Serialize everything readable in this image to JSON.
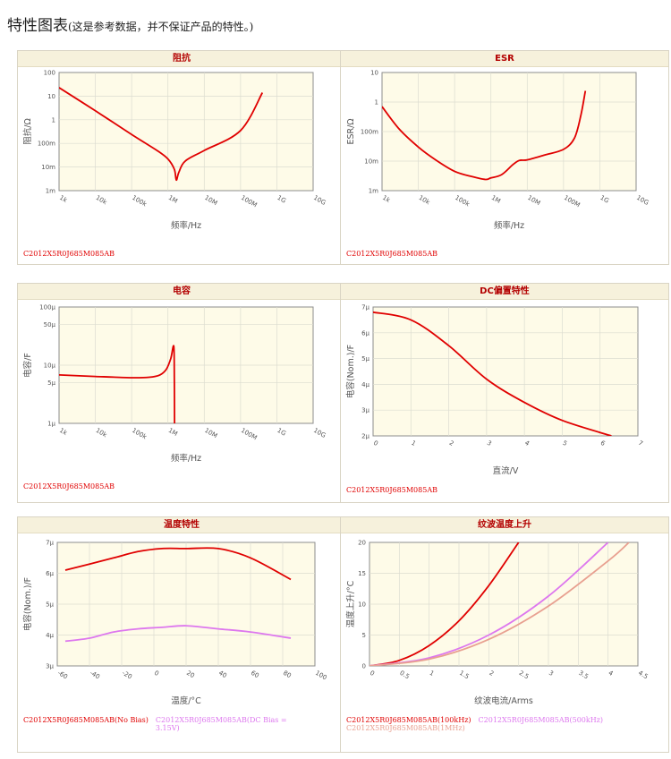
{
  "page": {
    "title": "特性图表",
    "subtitle": "(这是参考数据，并不保证产品的特性。)"
  },
  "chart_data": [
    {
      "id": "impedance",
      "type": "line",
      "title": "阻抗",
      "xlabel": "频率/Hz",
      "ylabel": "阻抗/Ω",
      "xscale": "log",
      "yscale": "log",
      "xlim": [
        1000,
        10000000000
      ],
      "ylim": [
        0.001,
        100
      ],
      "xticks": [
        1000,
        10000,
        100000,
        1000000,
        10000000,
        100000000,
        1000000000,
        10000000000
      ],
      "xtick_labels": [
        "1k",
        "10k",
        "100k",
        "1M",
        "10M",
        "100M",
        "1G",
        "10G"
      ],
      "yticks": [
        0.001,
        0.01,
        0.1,
        1,
        10,
        100
      ],
      "ytick_labels": [
        "1m",
        "10m",
        "100m",
        "1",
        "10",
        "100"
      ],
      "series": [
        {
          "color": "#e00000",
          "x": [
            1000,
            10000,
            100000,
            500000,
            1000000,
            1500000,
            1700000,
            2000000,
            3000000,
            10000000,
            100000000,
            400000000
          ],
          "y": [
            23,
            2.4,
            0.24,
            0.05,
            0.022,
            0.008,
            0.0028,
            0.006,
            0.018,
            0.05,
            0.35,
            14
          ]
        }
      ],
      "legend": [
        {
          "label": "C2012X5R0J685M085AB",
          "color": "#e00000"
        }
      ]
    },
    {
      "id": "esr",
      "type": "line",
      "title": "ESR",
      "xlabel": "频率/Hz",
      "ylabel": "ESR/Ω",
      "xscale": "log",
      "yscale": "log",
      "xlim": [
        1000,
        10000000000
      ],
      "ylim": [
        0.001,
        10
      ],
      "xticks": [
        1000,
        10000,
        100000,
        1000000,
        10000000,
        100000000,
        1000000000,
        10000000000
      ],
      "xtick_labels": [
        "1k",
        "10k",
        "100k",
        "1M",
        "10M",
        "100M",
        "1G",
        "10G"
      ],
      "yticks": [
        0.001,
        0.01,
        0.1,
        1,
        10
      ],
      "ytick_labels": [
        "1m",
        "10m",
        "100m",
        "1",
        "10"
      ],
      "series": [
        {
          "color": "#e00000",
          "x": [
            1000,
            3000,
            10000,
            30000,
            100000,
            300000,
            700000,
            1000000,
            2000000,
            4000000,
            6000000,
            10000000,
            30000000,
            100000000,
            200000000,
            300000000,
            400000000
          ],
          "y": [
            0.7,
            0.12,
            0.03,
            0.011,
            0.0045,
            0.003,
            0.0024,
            0.0027,
            0.0035,
            0.0075,
            0.0105,
            0.011,
            0.016,
            0.025,
            0.06,
            0.35,
            2.4
          ]
        }
      ],
      "legend": [
        {
          "label": "C2012X5R0J685M085AB",
          "color": "#e00000"
        }
      ]
    },
    {
      "id": "capacitance",
      "type": "line",
      "title": "电容",
      "xlabel": "频率/Hz",
      "ylabel": "电容/F",
      "xscale": "log",
      "yscale": "log",
      "xlim": [
        1000,
        10000000000
      ],
      "ylim": [
        1e-06,
        0.0001
      ],
      "xticks": [
        1000,
        10000,
        100000,
        1000000,
        10000000,
        100000000,
        1000000000,
        10000000000
      ],
      "xtick_labels": [
        "1k",
        "10k",
        "100k",
        "1M",
        "10M",
        "100M",
        "1G",
        "10G"
      ],
      "yticks": [
        1e-06,
        5e-06,
        1e-05,
        5e-05,
        0.0001
      ],
      "ytick_labels": [
        "1μ",
        "5μ",
        "10μ",
        "50μ",
        "100μ"
      ],
      "series": [
        {
          "color": "#e00000",
          "x": [
            1000,
            10000,
            100000,
            300000,
            600000,
            900000,
            1200000,
            1450000,
            1500000,
            1520000
          ],
          "y": [
            6.8e-06,
            6.4e-06,
            6.1e-06,
            6.2e-06,
            6.8e-06,
            8.5e-06,
            1.3e-05,
            2.1e-05,
            5e-06,
            1e-06
          ]
        }
      ],
      "legend": [
        {
          "label": "C2012X5R0J685M085AB",
          "color": "#e00000"
        }
      ]
    },
    {
      "id": "dc_bias",
      "type": "line",
      "title": "DC偏置特性",
      "xlabel": "直流/V",
      "ylabel": "电容(Nom.)/F",
      "xlim": [
        0,
        7
      ],
      "ylim": [
        2e-06,
        7e-06
      ],
      "xticks": [
        0,
        1,
        2,
        3,
        4,
        5,
        6,
        7
      ],
      "xtick_labels": [
        "0",
        "1",
        "2",
        "3",
        "4",
        "5",
        "6",
        "7"
      ],
      "yticks": [
        2e-06,
        3e-06,
        4e-06,
        5e-06,
        6e-06,
        7e-06
      ],
      "ytick_labels": [
        "2μ",
        "3μ",
        "4μ",
        "5μ",
        "6μ",
        "7μ"
      ],
      "series": [
        {
          "color": "#e00000",
          "x": [
            0,
            1,
            2,
            3,
            4,
            5,
            6.3
          ],
          "y": [
            6.8e-06,
            6.5e-06,
            5.5e-06,
            4.2e-06,
            3.3e-06,
            2.6e-06,
            2e-06
          ]
        }
      ],
      "legend": [
        {
          "label": "C2012X5R0J685M085AB",
          "color": "#e00000"
        }
      ]
    },
    {
      "id": "temperature",
      "type": "line",
      "title": "温度特性",
      "xlabel": "温度/°C",
      "ylabel": "电容(Nom.)/F",
      "xlim": [
        -60,
        100
      ],
      "ylim": [
        3e-06,
        7e-06
      ],
      "xticks": [
        -60,
        -40,
        -20,
        0,
        20,
        40,
        60,
        80,
        100
      ],
      "xtick_labels": [
        "-60",
        "-40",
        "-20",
        "0",
        "20",
        "40",
        "60",
        "80",
        "100"
      ],
      "yticks": [
        3e-06,
        4e-06,
        5e-06,
        6e-06,
        7e-06
      ],
      "ytick_labels": [
        "3μ",
        "4μ",
        "5μ",
        "6μ",
        "7μ"
      ],
      "series": [
        {
          "name": "C2012X5R0J685M085AB(No Bias)",
          "color": "#e00000",
          "x": [
            -55,
            -40,
            -25,
            -10,
            5,
            20,
            40,
            60,
            85
          ],
          "y": [
            6.1e-06,
            6.3e-06,
            6.5e-06,
            6.7e-06,
            6.8e-06,
            6.8e-06,
            6.8e-06,
            6.5e-06,
            5.8e-06
          ]
        },
        {
          "name": "C2012X5R0J685M085AB(DC Bias = 3.15V)",
          "color": "#dd77ee",
          "x": [
            -55,
            -40,
            -25,
            -10,
            5,
            20,
            40,
            60,
            85
          ],
          "y": [
            3.8e-06,
            3.9e-06,
            4.1e-06,
            4.2e-06,
            4.25e-06,
            4.3e-06,
            4.2e-06,
            4.1e-06,
            3.9e-06
          ]
        }
      ],
      "legend": [
        {
          "label": "C2012X5R0J685M085AB(No Bias)",
          "color": "#e00000"
        },
        {
          "label": "C2012X5R0J685M085AB(DC Bias = 3.15V)",
          "color": "#dd77ee"
        }
      ]
    },
    {
      "id": "ripple",
      "type": "line",
      "title": "纹波温度上升",
      "xlabel": "纹波电流/Arms",
      "ylabel": "温度上升/°C",
      "xlim": [
        0,
        4.5
      ],
      "ylim": [
        0,
        20
      ],
      "xticks": [
        0,
        0.5,
        1,
        1.5,
        2,
        2.5,
        3,
        3.5,
        4,
        4.5
      ],
      "xtick_labels": [
        "0",
        "0.5",
        "1",
        "1.5",
        "2",
        "2.5",
        "3",
        "3.5",
        "4",
        "4.5"
      ],
      "yticks": [
        0,
        5,
        10,
        15,
        20
      ],
      "ytick_labels": [
        "0",
        "5",
        "10",
        "15",
        "20"
      ],
      "series": [
        {
          "name": "C2012X5R0J685M085AB(100kHz)",
          "color": "#e00000",
          "x": [
            0,
            0.5,
            1,
            1.5,
            2,
            2.5
          ],
          "y": [
            0,
            0.9,
            3.3,
            7.3,
            13,
            20
          ]
        },
        {
          "name": "C2012X5R0J685M085AB(500kHz)",
          "color": "#dd77ee",
          "x": [
            0,
            1,
            2,
            3,
            4
          ],
          "y": [
            0,
            1.3,
            5,
            11.3,
            20
          ]
        },
        {
          "name": "C2012X5R0J685M085AB(1MHz)",
          "color": "#e8a090",
          "x": [
            0,
            1,
            2,
            3,
            4,
            4.35
          ],
          "y": [
            0,
            1.1,
            4.3,
            9.7,
            17,
            20
          ]
        }
      ],
      "legend": [
        {
          "label": "C2012X5R0J685M085AB(100kHz)",
          "color": "#e00000"
        },
        {
          "label": "C2012X5R0J685M085AB(500kHz)",
          "color": "#dd77ee"
        },
        {
          "label": "C2012X5R0J685M085AB(1MHz)",
          "color": "#e8a090"
        }
      ]
    }
  ]
}
